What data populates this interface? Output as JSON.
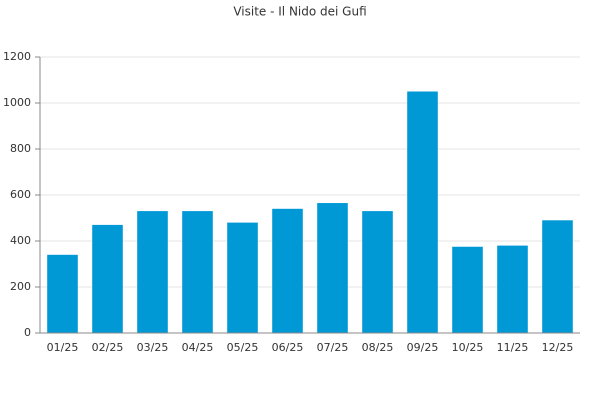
{
  "chart_data": {
    "type": "bar",
    "title": "Visite - Il Nido dei Gufi",
    "categories": [
      "01/25",
      "02/25",
      "03/25",
      "04/25",
      "05/25",
      "06/25",
      "07/25",
      "08/25",
      "09/25",
      "10/25",
      "11/25",
      "12/25"
    ],
    "values": [
      340,
      470,
      530,
      530,
      480,
      540,
      565,
      530,
      1050,
      375,
      380,
      490
    ],
    "color": "#0099d6",
    "ylim": [
      0,
      1200
    ],
    "yticks": [
      0,
      200,
      400,
      600,
      800,
      1000,
      1200
    ],
    "grid": true
  }
}
